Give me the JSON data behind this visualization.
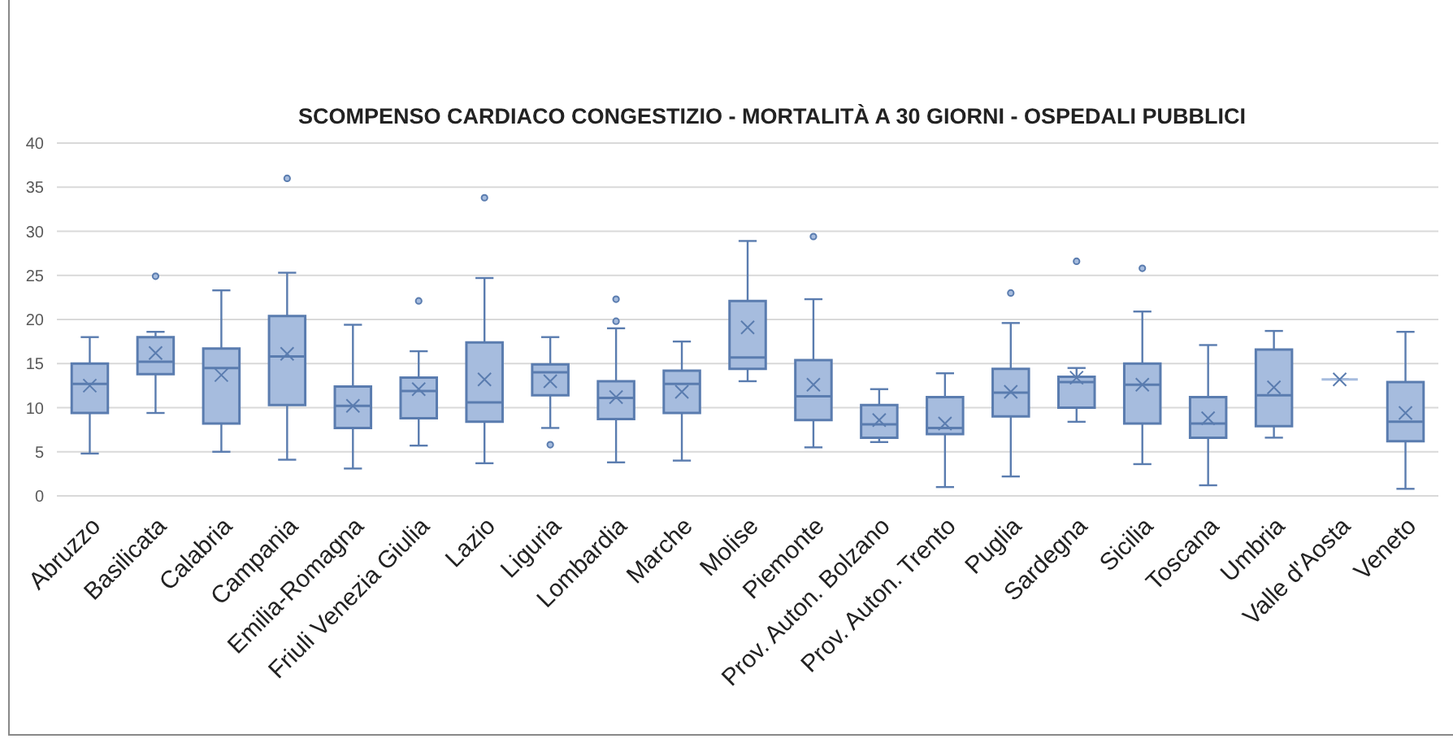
{
  "chart_data": {
    "type": "box",
    "title": "SCOMPENSO CARDIACO CONGESTIZIO - MORTALITÀ A 30 GIORNI - OSPEDALI PUBBLICI",
    "categories": [
      "Abruzzo",
      "Basilicata",
      "Calabria",
      "Campania",
      "Emilia-Romagna",
      "Friuli Venezia Giulia",
      "Lazio",
      "Liguria",
      "Lombardia",
      "Marche",
      "Molise",
      "Piemonte",
      "Prov. Auton. Bolzano",
      "Prov. Auton. Trento",
      "Puglia",
      "Sardegna",
      "Sicilia",
      "Toscana",
      "Umbria",
      "Valle d'Aosta",
      "Veneto"
    ],
    "color": "#a6bcde",
    "ylim": [
      0,
      40
    ],
    "yticks": [
      0,
      5,
      10,
      15,
      20,
      25,
      30,
      35,
      40
    ],
    "grid": "y",
    "boxes": [
      {
        "low": 4.8,
        "q1": 9.4,
        "median": 12.7,
        "q3": 15.0,
        "high": 18.0,
        "mean": 12.5
      },
      {
        "low": 9.4,
        "q1": 13.8,
        "median": 15.2,
        "q3": 18.0,
        "high": 18.6,
        "mean": 16.2,
        "outliers": [
          24.9
        ]
      },
      {
        "low": 5.0,
        "q1": 8.2,
        "median": 14.5,
        "q3": 16.7,
        "high": 23.3,
        "mean": 13.7
      },
      {
        "low": 4.1,
        "q1": 10.3,
        "median": 15.8,
        "q3": 20.4,
        "high": 25.3,
        "mean": 16.1,
        "outliers": [
          36.0
        ]
      },
      {
        "low": 3.1,
        "q1": 7.7,
        "median": 10.2,
        "q3": 12.4,
        "high": 19.4,
        "mean": 10.2
      },
      {
        "low": 5.7,
        "q1": 8.8,
        "median": 11.9,
        "q3": 13.4,
        "high": 16.4,
        "mean": 12.1,
        "outliers": [
          22.1
        ]
      },
      {
        "low": 3.7,
        "q1": 8.4,
        "median": 10.6,
        "q3": 17.4,
        "high": 24.7,
        "mean": 13.2,
        "outliers": [
          33.8
        ]
      },
      {
        "low": 7.7,
        "q1": 11.4,
        "median": 14.0,
        "q3": 14.9,
        "high": 18.0,
        "mean": 13.0,
        "outliers": [
          5.8
        ]
      },
      {
        "low": 3.8,
        "q1": 8.7,
        "median": 11.1,
        "q3": 13.0,
        "high": 19.0,
        "mean": 11.2,
        "outliers": [
          22.3,
          19.8
        ]
      },
      {
        "low": 4.0,
        "q1": 9.4,
        "median": 12.7,
        "q3": 14.2,
        "high": 17.5,
        "mean": 11.8
      },
      {
        "low": 13.0,
        "q1": 14.4,
        "median": 15.7,
        "q3": 22.1,
        "high": 28.9,
        "mean": 19.1
      },
      {
        "low": 5.5,
        "q1": 8.6,
        "median": 11.3,
        "q3": 15.4,
        "high": 22.3,
        "mean": 12.6,
        "outliers": [
          29.4
        ]
      },
      {
        "low": 6.1,
        "q1": 6.6,
        "median": 8.1,
        "q3": 10.3,
        "high": 12.1,
        "mean": 8.6
      },
      {
        "low": 1.0,
        "q1": 7.0,
        "median": 7.7,
        "q3": 11.2,
        "high": 13.9,
        "mean": 8.2
      },
      {
        "low": 2.2,
        "q1": 9.0,
        "median": 11.7,
        "q3": 14.4,
        "high": 19.6,
        "mean": 11.8,
        "outliers": [
          23.0
        ]
      },
      {
        "low": 8.4,
        "q1": 10.0,
        "median": 12.9,
        "q3": 13.5,
        "high": 14.5,
        "mean": 13.4,
        "outliers": [
          26.6
        ]
      },
      {
        "low": 3.6,
        "q1": 8.2,
        "median": 12.6,
        "q3": 15.0,
        "high": 20.9,
        "mean": 12.6,
        "outliers": [
          25.8
        ]
      },
      {
        "low": 1.2,
        "q1": 6.6,
        "median": 8.2,
        "q3": 11.2,
        "high": 17.1,
        "mean": 8.8
      },
      {
        "low": 6.6,
        "q1": 7.9,
        "median": 11.4,
        "q3": 16.6,
        "high": 18.7,
        "mean": 12.3
      },
      {
        "low": 13.2,
        "q1": 13.2,
        "median": 13.2,
        "q3": 13.2,
        "high": 13.2,
        "mean": 13.2
      },
      {
        "low": 0.8,
        "q1": 6.2,
        "median": 8.4,
        "q3": 12.9,
        "high": 18.6,
        "mean": 9.4
      }
    ]
  }
}
